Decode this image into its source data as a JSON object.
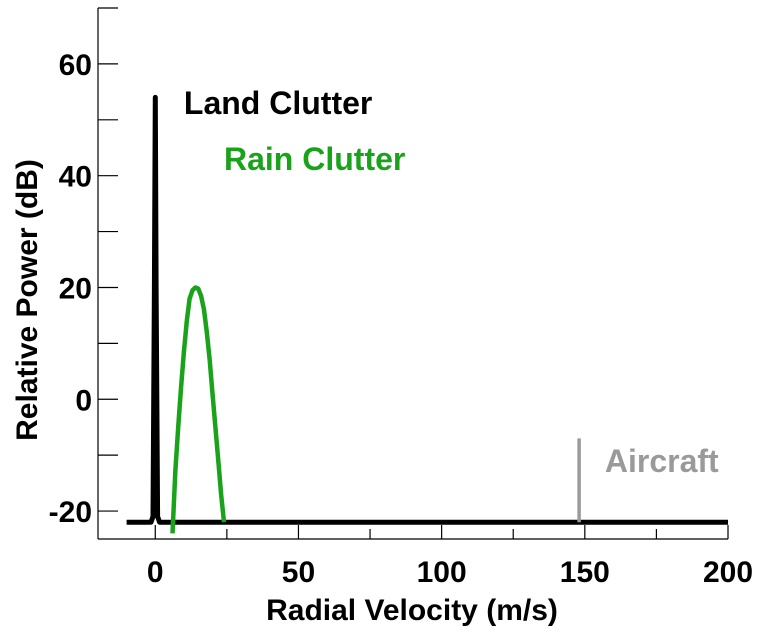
{
  "chart_data": {
    "type": "line",
    "title": "",
    "xlabel": "Radial Velocity (m/s)",
    "ylabel": "Relative Power (dB)",
    "xlim": [
      -20,
      200
    ],
    "ylim": [
      -25,
      70
    ],
    "x_ticks": [
      0,
      50,
      100,
      150,
      200
    ],
    "x_tick_labels": [
      "0",
      "50",
      "100",
      "150",
      "200"
    ],
    "y_ticks": [
      -20,
      0,
      20,
      40,
      60
    ],
    "y_tick_labels": [
      "-20",
      "0",
      "20",
      "40",
      "60"
    ],
    "y_minor_ticks": [
      -10,
      10,
      30,
      50,
      70
    ],
    "grid": false,
    "series": [
      {
        "name": "Land Clutter",
        "color": "#000000",
        "x": [
          -10,
          -1.5,
          -0.8,
          -0.3,
          0,
          0.3,
          0.8,
          1.5,
          200
        ],
        "y": [
          -22,
          -22,
          -21,
          20,
          54,
          20,
          -21,
          -22,
          -22
        ]
      },
      {
        "name": "Rain Clutter",
        "color": "#1aa31a",
        "x": [
          6,
          7,
          8,
          9,
          10,
          11,
          12,
          13,
          14,
          15,
          16,
          17,
          18,
          19,
          20,
          21,
          22,
          23,
          24
        ],
        "y": [
          -24,
          -13,
          -5,
          2,
          8.5,
          14,
          18,
          19.5,
          20,
          19.8,
          18.5,
          16,
          12,
          7,
          1,
          -5,
          -11,
          -17,
          -22
        ]
      },
      {
        "name": "Aircraft",
        "color": "#9a9a9a",
        "x": [
          148,
          148
        ],
        "y": [
          -22,
          -7
        ]
      }
    ],
    "annotations": [
      {
        "text": "Land Clutter",
        "color": "#000000",
        "x": 10,
        "y": 51
      },
      {
        "text": "Rain Clutter",
        "color": "#1aa31a",
        "x": 24,
        "y": 41
      },
      {
        "text": "Aircraft",
        "color": "#9a9a9a",
        "x": 157,
        "y": -13
      }
    ]
  }
}
